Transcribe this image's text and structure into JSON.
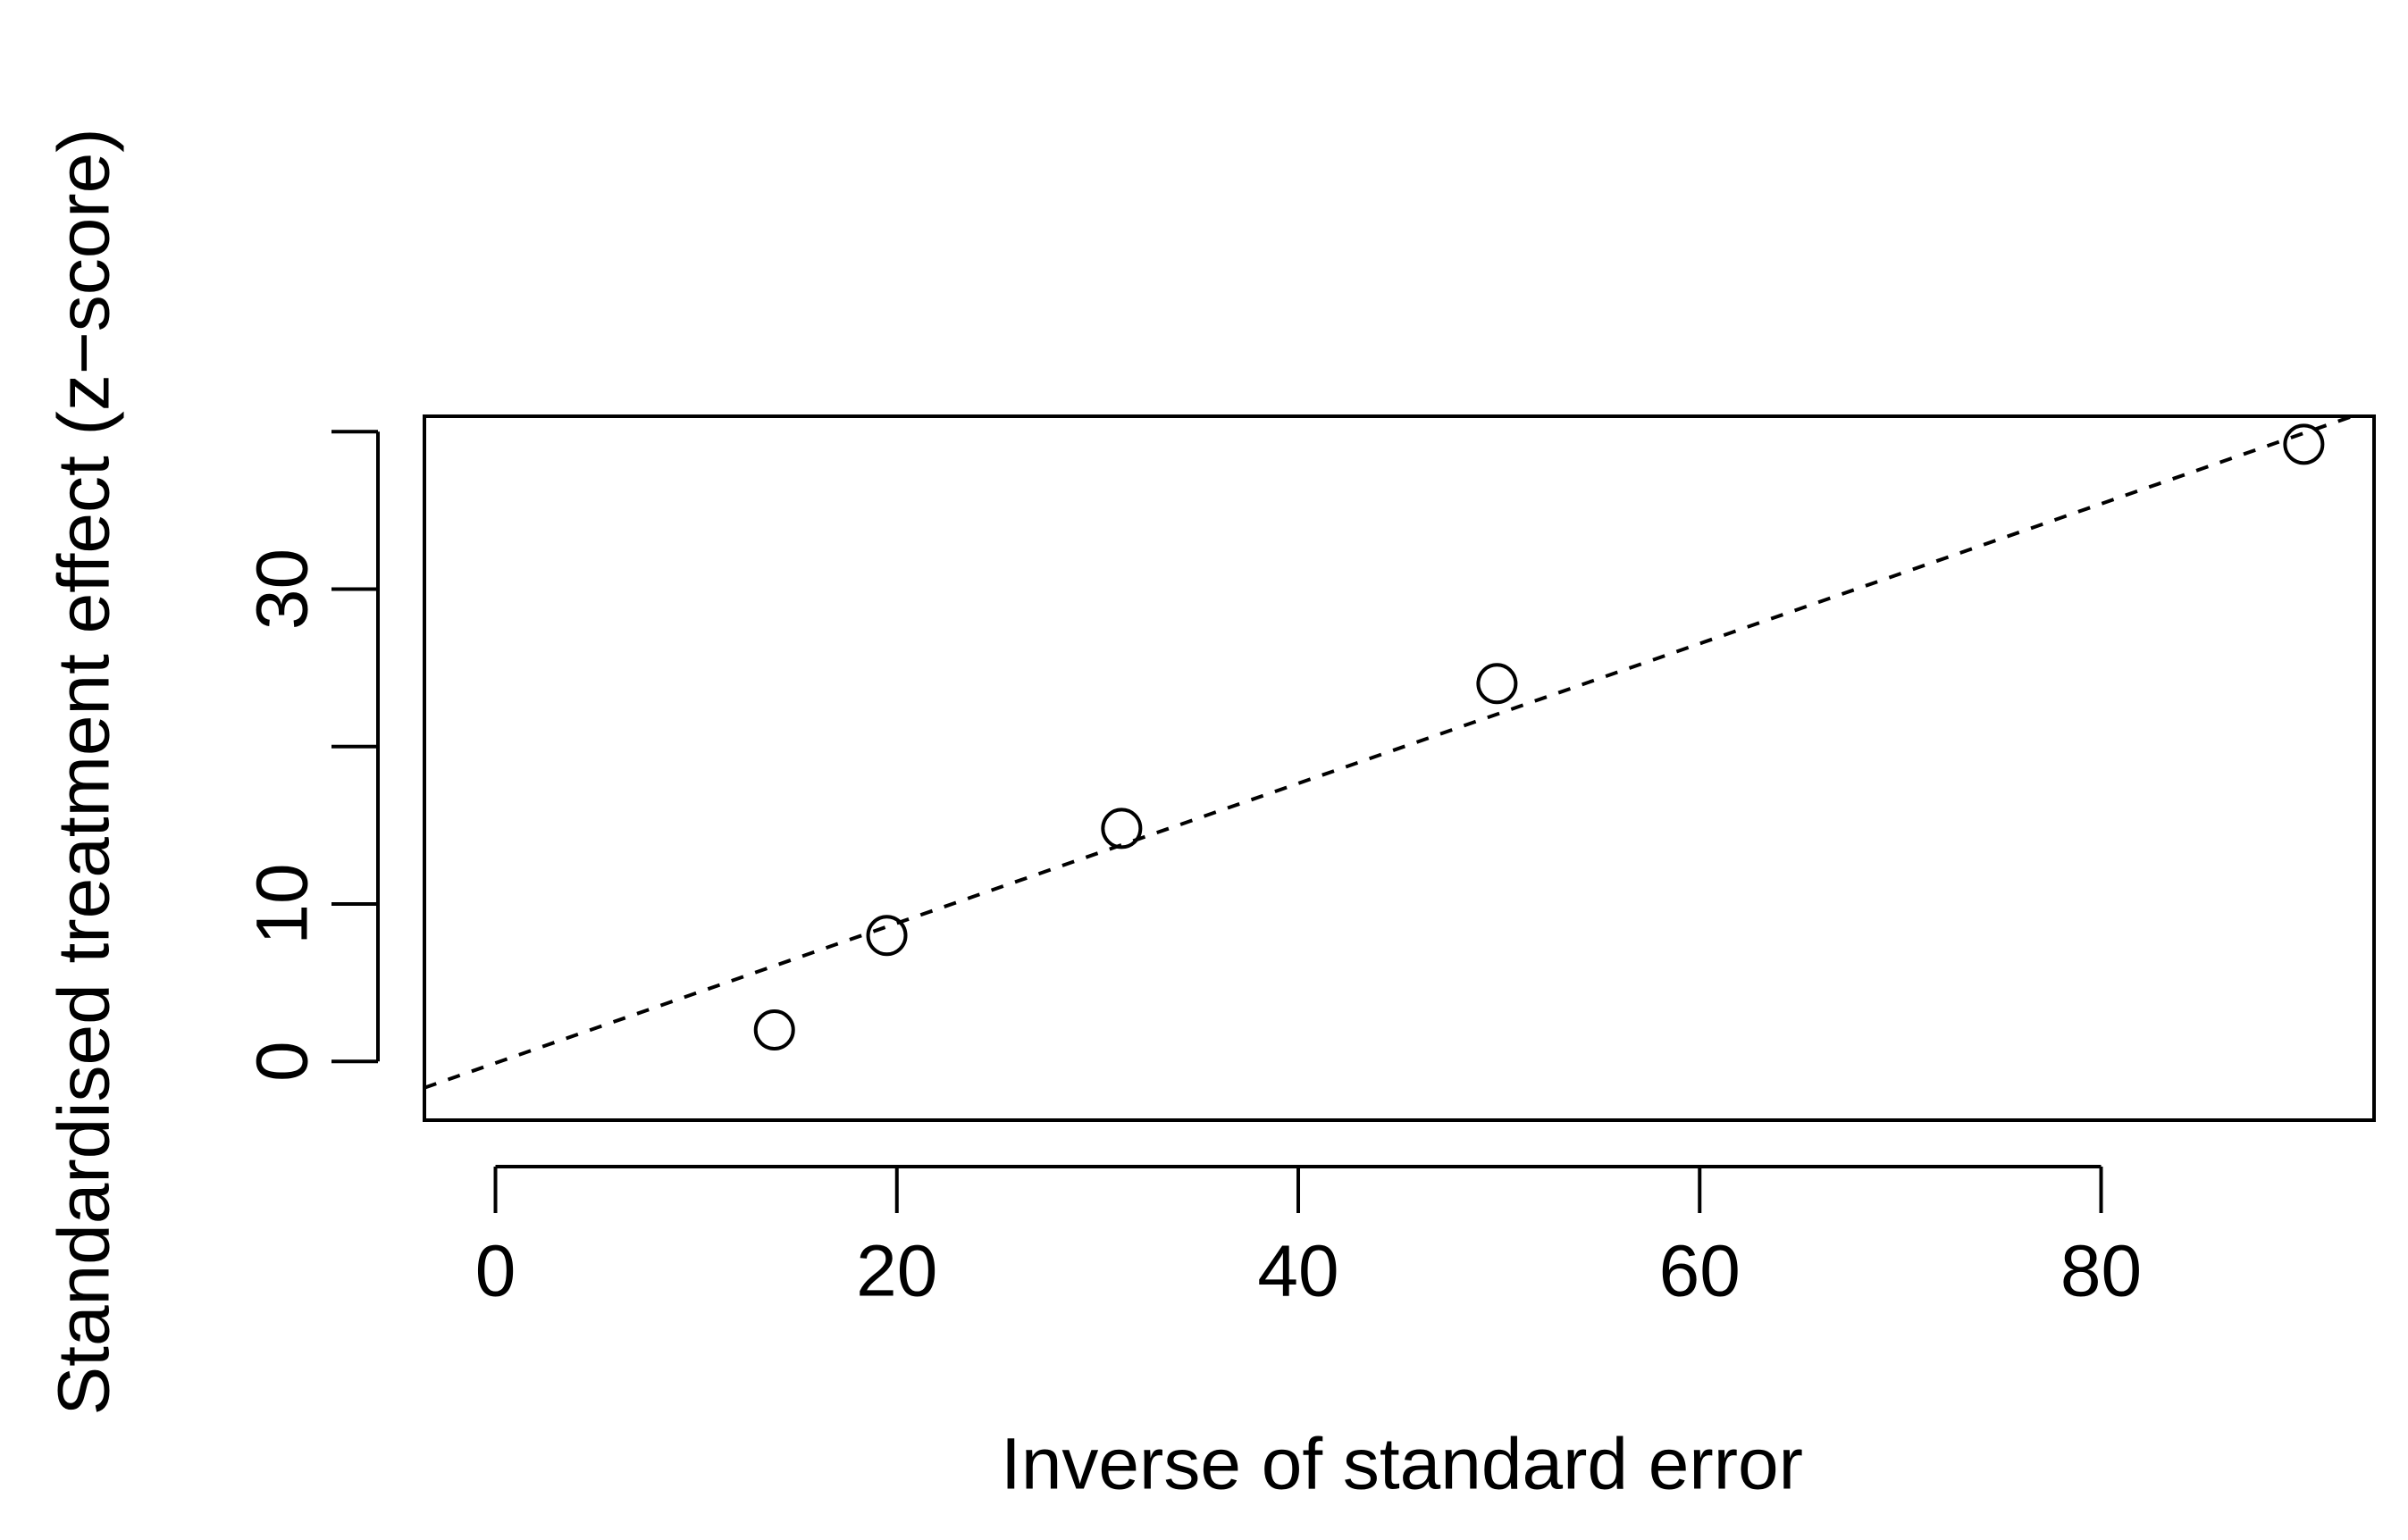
{
  "chart_data": {
    "type": "scatter",
    "xlabel": "Inverse of standard error",
    "ylabel": "Standardised treatment effect (z−score)",
    "x": [
      13.9,
      19.5,
      31.2,
      49.9,
      90.1
    ],
    "values": [
      2.0,
      8.0,
      14.8,
      24.0,
      39.2
    ],
    "color": "#000000",
    "fit_line": {
      "intercept": -0.1,
      "slope": 0.444,
      "color": "#000000",
      "dashed": true
    },
    "xlim": [
      -3.54,
      93.6
    ],
    "ylim": [
      -3.73,
      40.98
    ],
    "xticks": [
      0,
      20,
      40,
      60,
      80
    ],
    "yticks": [
      0,
      10,
      30
    ],
    "yticks_unlabeled": [
      20,
      40
    ],
    "grid": false
  }
}
